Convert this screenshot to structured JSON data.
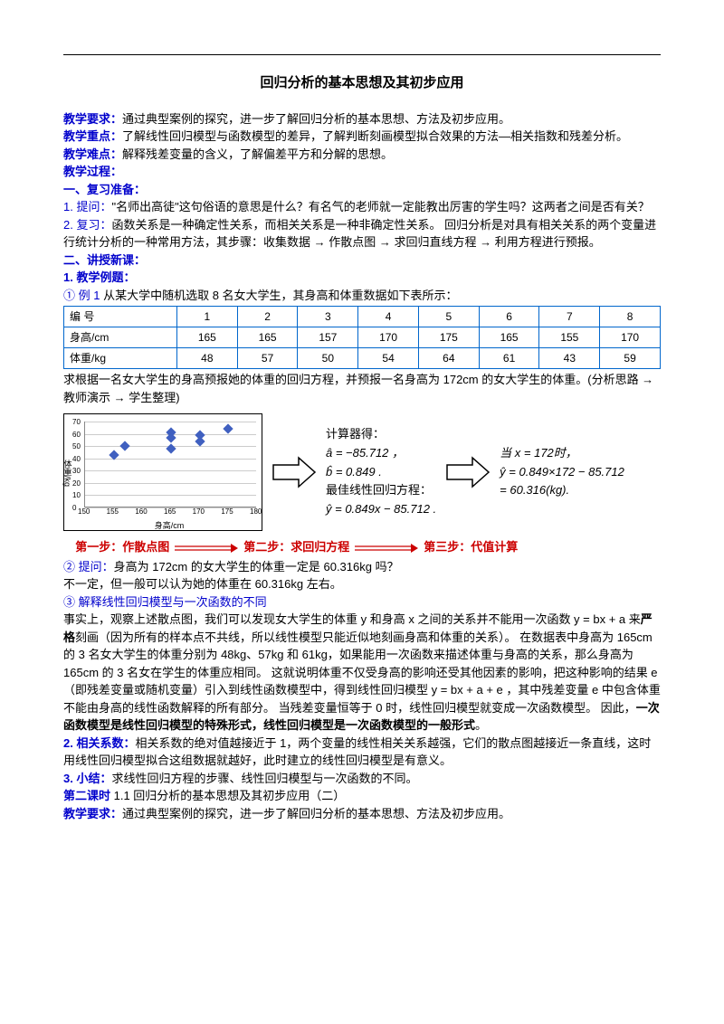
{
  "title": "回归分析的基本思想及其初步应用",
  "intro": {
    "req_label": "教学要求：",
    "req_text": "通过典型案例的探究，进一步了解回归分析的基本思想、方法及初步应用。",
    "key_label": "教学重点：",
    "key_text": "了解线性回归模型与函数模型的差异，了解判断刻画模型拟合效果的方法—相关指数和残差分析。",
    "diff_label": "教学难点：",
    "diff_text": "解释残差变量的含义，了解偏差平方和分解的思想。",
    "proc_label": "教学过程：",
    "sec1_label": "一、复习准备：",
    "q1_label": "1. 提问：",
    "q1_text": "\"名师出高徒\"这句俗语的意思是什么？有名气的老师就一定能教出厉害的学生吗？这两者之间是否有关？",
    "q2_label": "2. 复习：",
    "q2_text1": "函数关系是一种确定性关系，而相关关系是一种非确定性关系。 回归分析是对具有相关关系的两个变量进行统计分析的一种常用方法，其步骤：收集数据",
    "q2_arrow": "→",
    "q2_text2": "作散点图",
    "q2_text3": "求回归直线方程",
    "q2_text4": "利用方程进行预报。",
    "sec2_label": "二、讲授新课：",
    "sub1_label": "1. 教学例题：",
    "ex1_label": "① 例 1",
    "ex1_text": " 从某大学中随机选取 8 名女大学生，其身高和体重数据如下表所示："
  },
  "table": {
    "headers": [
      "编    号",
      "1",
      "2",
      "3",
      "4",
      "5",
      "6",
      "7",
      "8"
    ],
    "height_label": "身高/cm",
    "heights": [
      "165",
      "165",
      "157",
      "170",
      "175",
      "165",
      "155",
      "170"
    ],
    "weight_label": "体重/kg",
    "weights": [
      "48",
      "57",
      "50",
      "54",
      "64",
      "61",
      "43",
      "59"
    ]
  },
  "after_table": "求根据一名女大学生的身高预报她的体重的回归方程，并预报一名身高为 172cm 的女大学生的体重。(分析思路 → 教师演示 → 学生整理)",
  "chart": {
    "y_title": "体重/kg",
    "x_title": "身高/cm",
    "y_ticks": [
      "0",
      "10",
      "20",
      "30",
      "40",
      "50",
      "60",
      "70"
    ],
    "x_ticks": [
      "150",
      "155",
      "160",
      "165",
      "170",
      "175",
      "180"
    ],
    "points": [
      {
        "x": 155,
        "y": 43
      },
      {
        "x": 157,
        "y": 50
      },
      {
        "x": 165,
        "y": 48
      },
      {
        "x": 165,
        "y": 57
      },
      {
        "x": 165,
        "y": 61
      },
      {
        "x": 170,
        "y": 54
      },
      {
        "x": 170,
        "y": 59
      },
      {
        "x": 175,
        "y": 64
      }
    ],
    "xlim": [
      150,
      180
    ],
    "ylim": [
      0,
      70
    ],
    "border_color": "#000000",
    "grid_color": "#cccccc",
    "point_color": "#4060c0"
  },
  "calc": {
    "l1": "计算器得：",
    "l2": "â = −85.712 ，",
    "l3": "b̂ = 0.849 .",
    "l4": "最佳线性回归方程：",
    "l5": "ŷ = 0.849x − 85.712 .",
    "r1": "当 x = 172时，",
    "r2": "ŷ = 0.849×172 − 85.712",
    "r3": "    = 60.316(kg)."
  },
  "steps": {
    "s1": "第一步：作散点图",
    "s2": "第二步：求回归方程",
    "s3": "第三步：代值计算"
  },
  "body": {
    "q2_label": "② 提问：",
    "q2": "身高为 172cm 的女大学生的体重一定是 60.316kg 吗？",
    "q2_ans": "不一定，但一般可以认为她的体重在 60.316kg 左右。",
    "q3_label": "③ 解释线性回归模型与一次函数的不同",
    "p1a": "事实上，观察上述散点图，我们可以发现女大学生的体重 y 和身高 x 之间的关系并不能用一次函数 y = bx + a 来",
    "p1_strict": "严格",
    "p1b": "刻画（因为所有的样本点不共线，所以线性模型只能近似地刻画身高和体重的关系）。    在数据表中身高为 165cm 的 3 名女大学生的体重分别为 48kg、57kg 和 61kg，如果能用一次函数来描述体重与身高的关系，那么身高为 165cm 的 3 名女在学生的体重应相同。 这就说明体重不仅受身高的影响还受其他因素的影响，把这种影响的结果 e（即残差变量或随机变量）引入到线性函数模型中，得到线性回归模型 y = bx + a + e ，其中残差变量 e 中包含体重不能由身高的线性函数解释的所有部分。 当残差变量恒等于 0 时，线性回归模型就变成一次函数模型。 因此，",
    "p1_bold": "一次函数模型是线性回归模型的特殊形式，线性回归模型是一次函数模型的一般形式",
    "p1_end": "。",
    "p2_label": "2.  相关系数：",
    "p2": "相关系数的绝对值越接近于 1，两个变量的线性相关关系越强，它们的散点图越接近一条直线，这时用线性回归模型拟合这组数据就越好，此时建立的线性回归模型是有意义。",
    "p3_label": "3. 小结：",
    "p3": "求线性回归方程的步骤、线性回归模型与一次函数的不同。",
    "p4_label": "第二课时",
    "p4": "    1.1 回归分析的基本思想及其初步应用（二）",
    "p5_label": "教学要求：",
    "p5": "通过典型案例的探究，进一步了解回归分析的基本思想、方法及初步应用。"
  }
}
